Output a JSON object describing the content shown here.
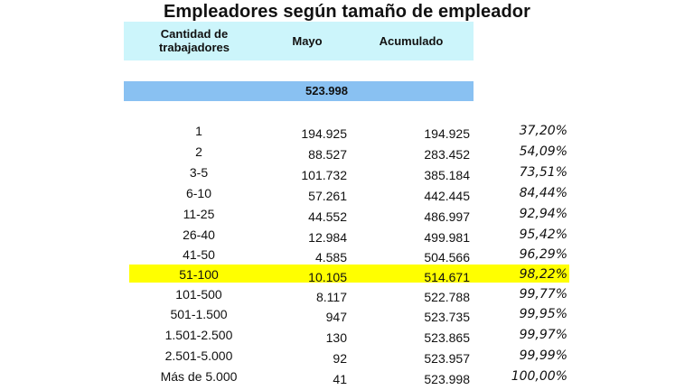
{
  "title": "Empleadores según tamaño de empleador",
  "header": {
    "col1_line1": "Cantidad de",
    "col1_line2": "trabajadores",
    "col2": "Mayo",
    "col3": "Acumulado"
  },
  "total": "523.998",
  "rows": [
    {
      "size": "1",
      "mayo": "194.925",
      "acumulado": "194.925",
      "pct": "37,20%"
    },
    {
      "size": "2",
      "mayo": "88.527",
      "acumulado": "283.452",
      "pct": "54,09%"
    },
    {
      "size": "3-5",
      "mayo": "101.732",
      "acumulado": "385.184",
      "pct": "73,51%"
    },
    {
      "size": "6-10",
      "mayo": "57.261",
      "acumulado": "442.445",
      "pct": "84,44%"
    },
    {
      "size": "11-25",
      "mayo": "44.552",
      "acumulado": "486.997",
      "pct": "92,94%"
    },
    {
      "size": "26-40",
      "mayo": "12.984",
      "acumulado": "499.981",
      "pct": "95,42%"
    },
    {
      "size": "41-50",
      "mayo": "4.585",
      "acumulado": "504.566",
      "pct": "96,29%"
    },
    {
      "size": "51-100",
      "mayo": "10.105",
      "acumulado": "514.671",
      "pct": "98,22%"
    },
    {
      "size": "101-500",
      "mayo": "8.117",
      "acumulado": "522.788",
      "pct": "99,77%"
    },
    {
      "size": "501-1.500",
      "mayo": "947",
      "acumulado": "523.735",
      "pct": "99,95%"
    },
    {
      "size": "1.501-2.500",
      "mayo": "130",
      "acumulado": "523.865",
      "pct": "99,97%"
    },
    {
      "size": "2.501-5.000",
      "mayo": "92",
      "acumulado": "523.957",
      "pct": "99,99%"
    },
    {
      "size": "Más de 5.000",
      "mayo": "41",
      "acumulado": "523.998",
      "pct": "100,00%"
    }
  ],
  "colors": {
    "header_band": "#ccf5fb",
    "total_band": "#89c1f2",
    "highlight": "#ffff00"
  }
}
